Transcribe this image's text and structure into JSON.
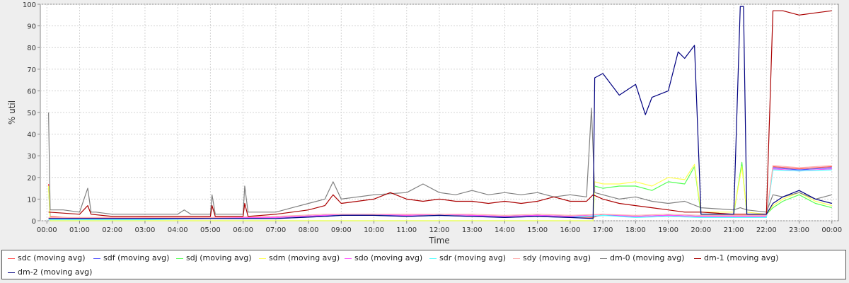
{
  "chart_data": {
    "type": "line",
    "xlabel": "Time",
    "ylabel": "% util",
    "ylim": [
      0,
      100
    ],
    "yticks": [
      0,
      10,
      20,
      30,
      40,
      50,
      60,
      70,
      80,
      90,
      100
    ],
    "xlim_hours": [
      -0.2,
      24.2
    ],
    "xtick_labels": [
      "00:00",
      "01:00",
      "02:00",
      "03:00",
      "04:00",
      "05:00",
      "06:00",
      "07:00",
      "08:00",
      "09:00",
      "10:00",
      "11:00",
      "12:00",
      "13:00",
      "14:00",
      "15:00",
      "16:00",
      "17:00",
      "18:00",
      "19:00",
      "20:00",
      "21:00",
      "22:00",
      "23:00",
      "00:00"
    ],
    "grid": true,
    "legend_position": "bottom",
    "series": [
      {
        "name": "sdc (moving avg)",
        "color": "#ff5555",
        "points": [
          [
            0.05,
            17
          ],
          [
            0.1,
            2
          ],
          [
            1,
            1
          ],
          [
            3,
            1.5
          ],
          [
            5,
            1
          ],
          [
            7,
            1.5
          ],
          [
            8.5,
            2.5
          ],
          [
            9,
            3
          ],
          [
            10,
            2.5
          ],
          [
            11,
            2.5
          ],
          [
            12,
            3
          ],
          [
            13,
            2.5
          ],
          [
            14,
            2
          ],
          [
            15,
            2.5
          ],
          [
            16,
            2
          ],
          [
            16.7,
            1.5
          ],
          [
            17,
            3
          ],
          [
            18,
            2
          ],
          [
            19,
            2.5
          ],
          [
            20,
            2
          ],
          [
            21,
            2
          ],
          [
            22,
            2
          ],
          [
            22.2,
            25
          ],
          [
            23,
            24
          ],
          [
            24,
            25
          ]
        ]
      },
      {
        "name": "sdf (moving avg)",
        "color": "#5555ff",
        "points": [
          [
            0.05,
            16
          ],
          [
            0.1,
            1
          ],
          [
            1,
            1
          ],
          [
            3,
            1
          ],
          [
            5,
            1
          ],
          [
            7,
            1.5
          ],
          [
            8.5,
            2.5
          ],
          [
            9,
            2.5
          ],
          [
            10,
            3
          ],
          [
            11,
            2
          ],
          [
            12,
            2.5
          ],
          [
            13,
            2
          ],
          [
            14,
            2
          ],
          [
            15,
            2.5
          ],
          [
            16,
            2
          ],
          [
            16.7,
            2
          ],
          [
            17,
            2.5
          ],
          [
            18,
            2
          ],
          [
            19,
            2.5
          ],
          [
            20,
            2
          ],
          [
            21,
            2
          ],
          [
            22,
            2
          ],
          [
            22.2,
            24.5
          ],
          [
            23,
            23.5
          ],
          [
            24,
            24.5
          ]
        ]
      },
      {
        "name": "sdj (moving avg)",
        "color": "#55ff55",
        "points": [
          [
            0.05,
            16
          ],
          [
            0.1,
            0
          ],
          [
            16.7,
            0
          ],
          [
            16.75,
            16
          ],
          [
            17,
            15
          ],
          [
            17.5,
            16
          ],
          [
            18,
            16
          ],
          [
            18.5,
            14
          ],
          [
            19,
            18
          ],
          [
            19.5,
            17
          ],
          [
            19.8,
            25
          ],
          [
            20,
            3
          ],
          [
            21,
            3
          ],
          [
            21.25,
            27
          ],
          [
            21.4,
            3
          ],
          [
            22,
            3
          ],
          [
            22.2,
            6
          ],
          [
            22.5,
            9
          ],
          [
            23,
            12
          ],
          [
            23.5,
            8
          ],
          [
            24,
            6
          ]
        ]
      },
      {
        "name": "sdm (moving avg)",
        "color": "#ffff55",
        "points": [
          [
            0.05,
            16
          ],
          [
            0.1,
            0
          ],
          [
            16.7,
            0
          ],
          [
            16.75,
            18
          ],
          [
            17,
            17
          ],
          [
            17.5,
            17
          ],
          [
            18,
            18
          ],
          [
            18.5,
            16
          ],
          [
            19,
            20
          ],
          [
            19.5,
            19
          ],
          [
            19.8,
            26
          ],
          [
            20,
            4
          ],
          [
            21,
            4
          ],
          [
            21.25,
            25
          ],
          [
            21.4,
            4
          ],
          [
            22,
            3
          ],
          [
            22.2,
            7
          ],
          [
            22.5,
            10
          ],
          [
            23,
            13
          ],
          [
            23.5,
            9
          ],
          [
            24,
            7
          ]
        ]
      },
      {
        "name": "sdo (moving avg)",
        "color": "#ff55ff",
        "points": [
          [
            0.05,
            1
          ],
          [
            1,
            1
          ],
          [
            3,
            1
          ],
          [
            5,
            1.5
          ],
          [
            7,
            1.5
          ],
          [
            8.5,
            2.5
          ],
          [
            9,
            3
          ],
          [
            10,
            3
          ],
          [
            11,
            2.5
          ],
          [
            12,
            3
          ],
          [
            13,
            2.5
          ],
          [
            14,
            2
          ],
          [
            15,
            2.5
          ],
          [
            16,
            2
          ],
          [
            17,
            3
          ],
          [
            18,
            2
          ],
          [
            19,
            2.5
          ],
          [
            20,
            2
          ],
          [
            22,
            2
          ],
          [
            22.2,
            24
          ],
          [
            23,
            23
          ],
          [
            24,
            24
          ]
        ]
      },
      {
        "name": "sdr (moving avg)",
        "color": "#55ffff",
        "points": [
          [
            0.05,
            0.5
          ],
          [
            1,
            0.5
          ],
          [
            3,
            0.5
          ],
          [
            5,
            1
          ],
          [
            7,
            1
          ],
          [
            8.5,
            2
          ],
          [
            9,
            2.5
          ],
          [
            10,
            2.5
          ],
          [
            11,
            2
          ],
          [
            12,
            2.5
          ],
          [
            13,
            2
          ],
          [
            14,
            1.5
          ],
          [
            15,
            2
          ],
          [
            16,
            1.5
          ],
          [
            17,
            2.5
          ],
          [
            18,
            1.5
          ],
          [
            19,
            2
          ],
          [
            20,
            1.5
          ],
          [
            22,
            1.5
          ],
          [
            22.2,
            23.5
          ],
          [
            23,
            23
          ],
          [
            24,
            23.5
          ]
        ]
      },
      {
        "name": "sdy (moving avg)",
        "color": "#ffafaf",
        "points": [
          [
            0.05,
            1.5
          ],
          [
            1,
            1.5
          ],
          [
            3,
            1.5
          ],
          [
            5,
            1.5
          ],
          [
            7,
            2
          ],
          [
            8.5,
            3
          ],
          [
            9,
            3
          ],
          [
            10,
            3
          ],
          [
            11,
            3
          ],
          [
            12,
            3
          ],
          [
            13,
            3
          ],
          [
            14,
            2.5
          ],
          [
            15,
            3
          ],
          [
            16,
            2.5
          ],
          [
            17,
            3
          ],
          [
            18,
            2.5
          ],
          [
            19,
            3
          ],
          [
            20,
            2.5
          ],
          [
            22,
            2.5
          ],
          [
            22.2,
            25.5
          ],
          [
            23,
            24.5
          ],
          [
            24,
            25.5
          ]
        ]
      },
      {
        "name": "dm-0 (moving avg)",
        "color": "#808080",
        "points": [
          [
            0.05,
            50
          ],
          [
            0.1,
            5
          ],
          [
            0.5,
            5
          ],
          [
            1,
            4
          ],
          [
            1.25,
            15
          ],
          [
            1.35,
            4
          ],
          [
            1.5,
            4
          ],
          [
            2,
            3
          ],
          [
            3,
            3
          ],
          [
            4,
            3
          ],
          [
            4.2,
            5
          ],
          [
            4.4,
            3
          ],
          [
            5,
            3
          ],
          [
            5.05,
            12
          ],
          [
            5.15,
            3
          ],
          [
            6,
            3
          ],
          [
            6.05,
            16
          ],
          [
            6.15,
            4
          ],
          [
            7,
            4
          ],
          [
            7.5,
            6
          ],
          [
            8,
            8
          ],
          [
            8.5,
            10
          ],
          [
            8.75,
            18
          ],
          [
            9,
            10
          ],
          [
            9.5,
            11
          ],
          [
            10,
            12
          ],
          [
            11,
            13
          ],
          [
            11.5,
            17
          ],
          [
            12,
            13
          ],
          [
            12.5,
            12
          ],
          [
            13,
            14
          ],
          [
            13.5,
            12
          ],
          [
            14,
            13
          ],
          [
            14.5,
            12
          ],
          [
            15,
            13
          ],
          [
            15.5,
            11
          ],
          [
            16,
            12
          ],
          [
            16.5,
            11
          ],
          [
            16.65,
            52
          ],
          [
            16.75,
            13
          ],
          [
            17,
            12
          ],
          [
            17.5,
            10
          ],
          [
            18,
            11
          ],
          [
            18.5,
            9
          ],
          [
            19,
            8
          ],
          [
            19.5,
            9
          ],
          [
            20,
            6
          ],
          [
            21,
            5
          ],
          [
            21.2,
            6
          ],
          [
            21.4,
            5
          ],
          [
            22,
            4
          ],
          [
            22.2,
            12
          ],
          [
            22.5,
            11
          ],
          [
            23,
            13
          ],
          [
            23.5,
            10
          ],
          [
            24,
            12
          ]
        ]
      },
      {
        "name": "dm-1 (moving avg)",
        "color": "#aa0000",
        "points": [
          [
            0.05,
            4
          ],
          [
            1,
            3
          ],
          [
            1.25,
            7
          ],
          [
            1.35,
            3
          ],
          [
            2,
            2
          ],
          [
            3,
            2
          ],
          [
            4,
            2
          ],
          [
            5,
            2
          ],
          [
            5.05,
            7
          ],
          [
            5.15,
            2
          ],
          [
            6,
            2
          ],
          [
            6.05,
            8
          ],
          [
            6.15,
            2
          ],
          [
            7,
            3
          ],
          [
            7.5,
            4
          ],
          [
            8,
            5
          ],
          [
            8.5,
            7
          ],
          [
            8.75,
            12
          ],
          [
            9,
            8
          ],
          [
            9.5,
            9
          ],
          [
            10,
            10
          ],
          [
            10.5,
            13
          ],
          [
            11,
            10
          ],
          [
            11.5,
            9
          ],
          [
            12,
            10
          ],
          [
            12.5,
            9
          ],
          [
            13,
            9
          ],
          [
            13.5,
            8
          ],
          [
            14,
            9
          ],
          [
            14.5,
            8
          ],
          [
            15,
            9
          ],
          [
            15.5,
            11
          ],
          [
            16,
            9
          ],
          [
            16.5,
            9
          ],
          [
            16.7,
            12
          ],
          [
            17,
            10
          ],
          [
            17.5,
            8
          ],
          [
            18,
            7
          ],
          [
            18.5,
            6
          ],
          [
            19,
            5
          ],
          [
            19.5,
            4
          ],
          [
            20,
            4
          ],
          [
            21,
            3
          ],
          [
            22,
            3
          ],
          [
            22.2,
            97
          ],
          [
            22.5,
            97
          ],
          [
            23,
            95
          ],
          [
            23.5,
            96
          ],
          [
            24,
            97
          ]
        ]
      },
      {
        "name": "dm-2 (moving avg)",
        "color": "#000080",
        "points": [
          [
            0.05,
            1
          ],
          [
            1,
            1
          ],
          [
            3,
            1
          ],
          [
            5,
            1
          ],
          [
            7,
            1
          ],
          [
            8.5,
            2
          ],
          [
            9,
            2.5
          ],
          [
            10,
            2.5
          ],
          [
            11,
            2
          ],
          [
            12,
            2.5
          ],
          [
            13,
            2
          ],
          [
            14,
            1.5
          ],
          [
            15,
            2
          ],
          [
            16,
            1.5
          ],
          [
            16.7,
            1
          ],
          [
            16.75,
            66
          ],
          [
            17,
            68
          ],
          [
            17.5,
            58
          ],
          [
            18,
            63
          ],
          [
            18.3,
            49
          ],
          [
            18.5,
            57
          ],
          [
            19,
            60
          ],
          [
            19.3,
            78
          ],
          [
            19.5,
            75
          ],
          [
            19.8,
            81
          ],
          [
            20,
            3
          ],
          [
            21,
            3
          ],
          [
            21.2,
            99
          ],
          [
            21.3,
            99
          ],
          [
            21.4,
            3
          ],
          [
            22,
            3
          ],
          [
            22.2,
            8
          ],
          [
            22.5,
            11
          ],
          [
            23,
            14
          ],
          [
            23.5,
            10
          ],
          [
            24,
            8
          ]
        ]
      }
    ]
  }
}
